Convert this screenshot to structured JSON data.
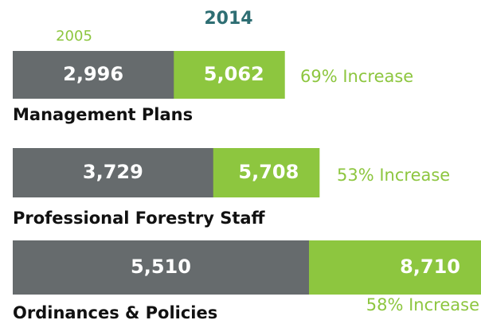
{
  "chart_data": {
    "type": "bar",
    "categories": [
      "Management Plans",
      "Professional Forestry Staff",
      "Ordinances & Policies"
    ],
    "series": [
      {
        "name": "2005",
        "color": "#666b6d",
        "values": [
          2996,
          3729,
          5510
        ],
        "value_labels": [
          "2,996",
          "3,729",
          "5,510"
        ]
      },
      {
        "name": "2014",
        "color": "#8dc63f",
        "values": [
          5062,
          5708,
          8710
        ],
        "value_labels": [
          "5,062",
          "5,708",
          "8,710"
        ]
      }
    ],
    "annotations": [
      "69% Increase",
      "53% Increase",
      "58% Increase"
    ]
  }
}
